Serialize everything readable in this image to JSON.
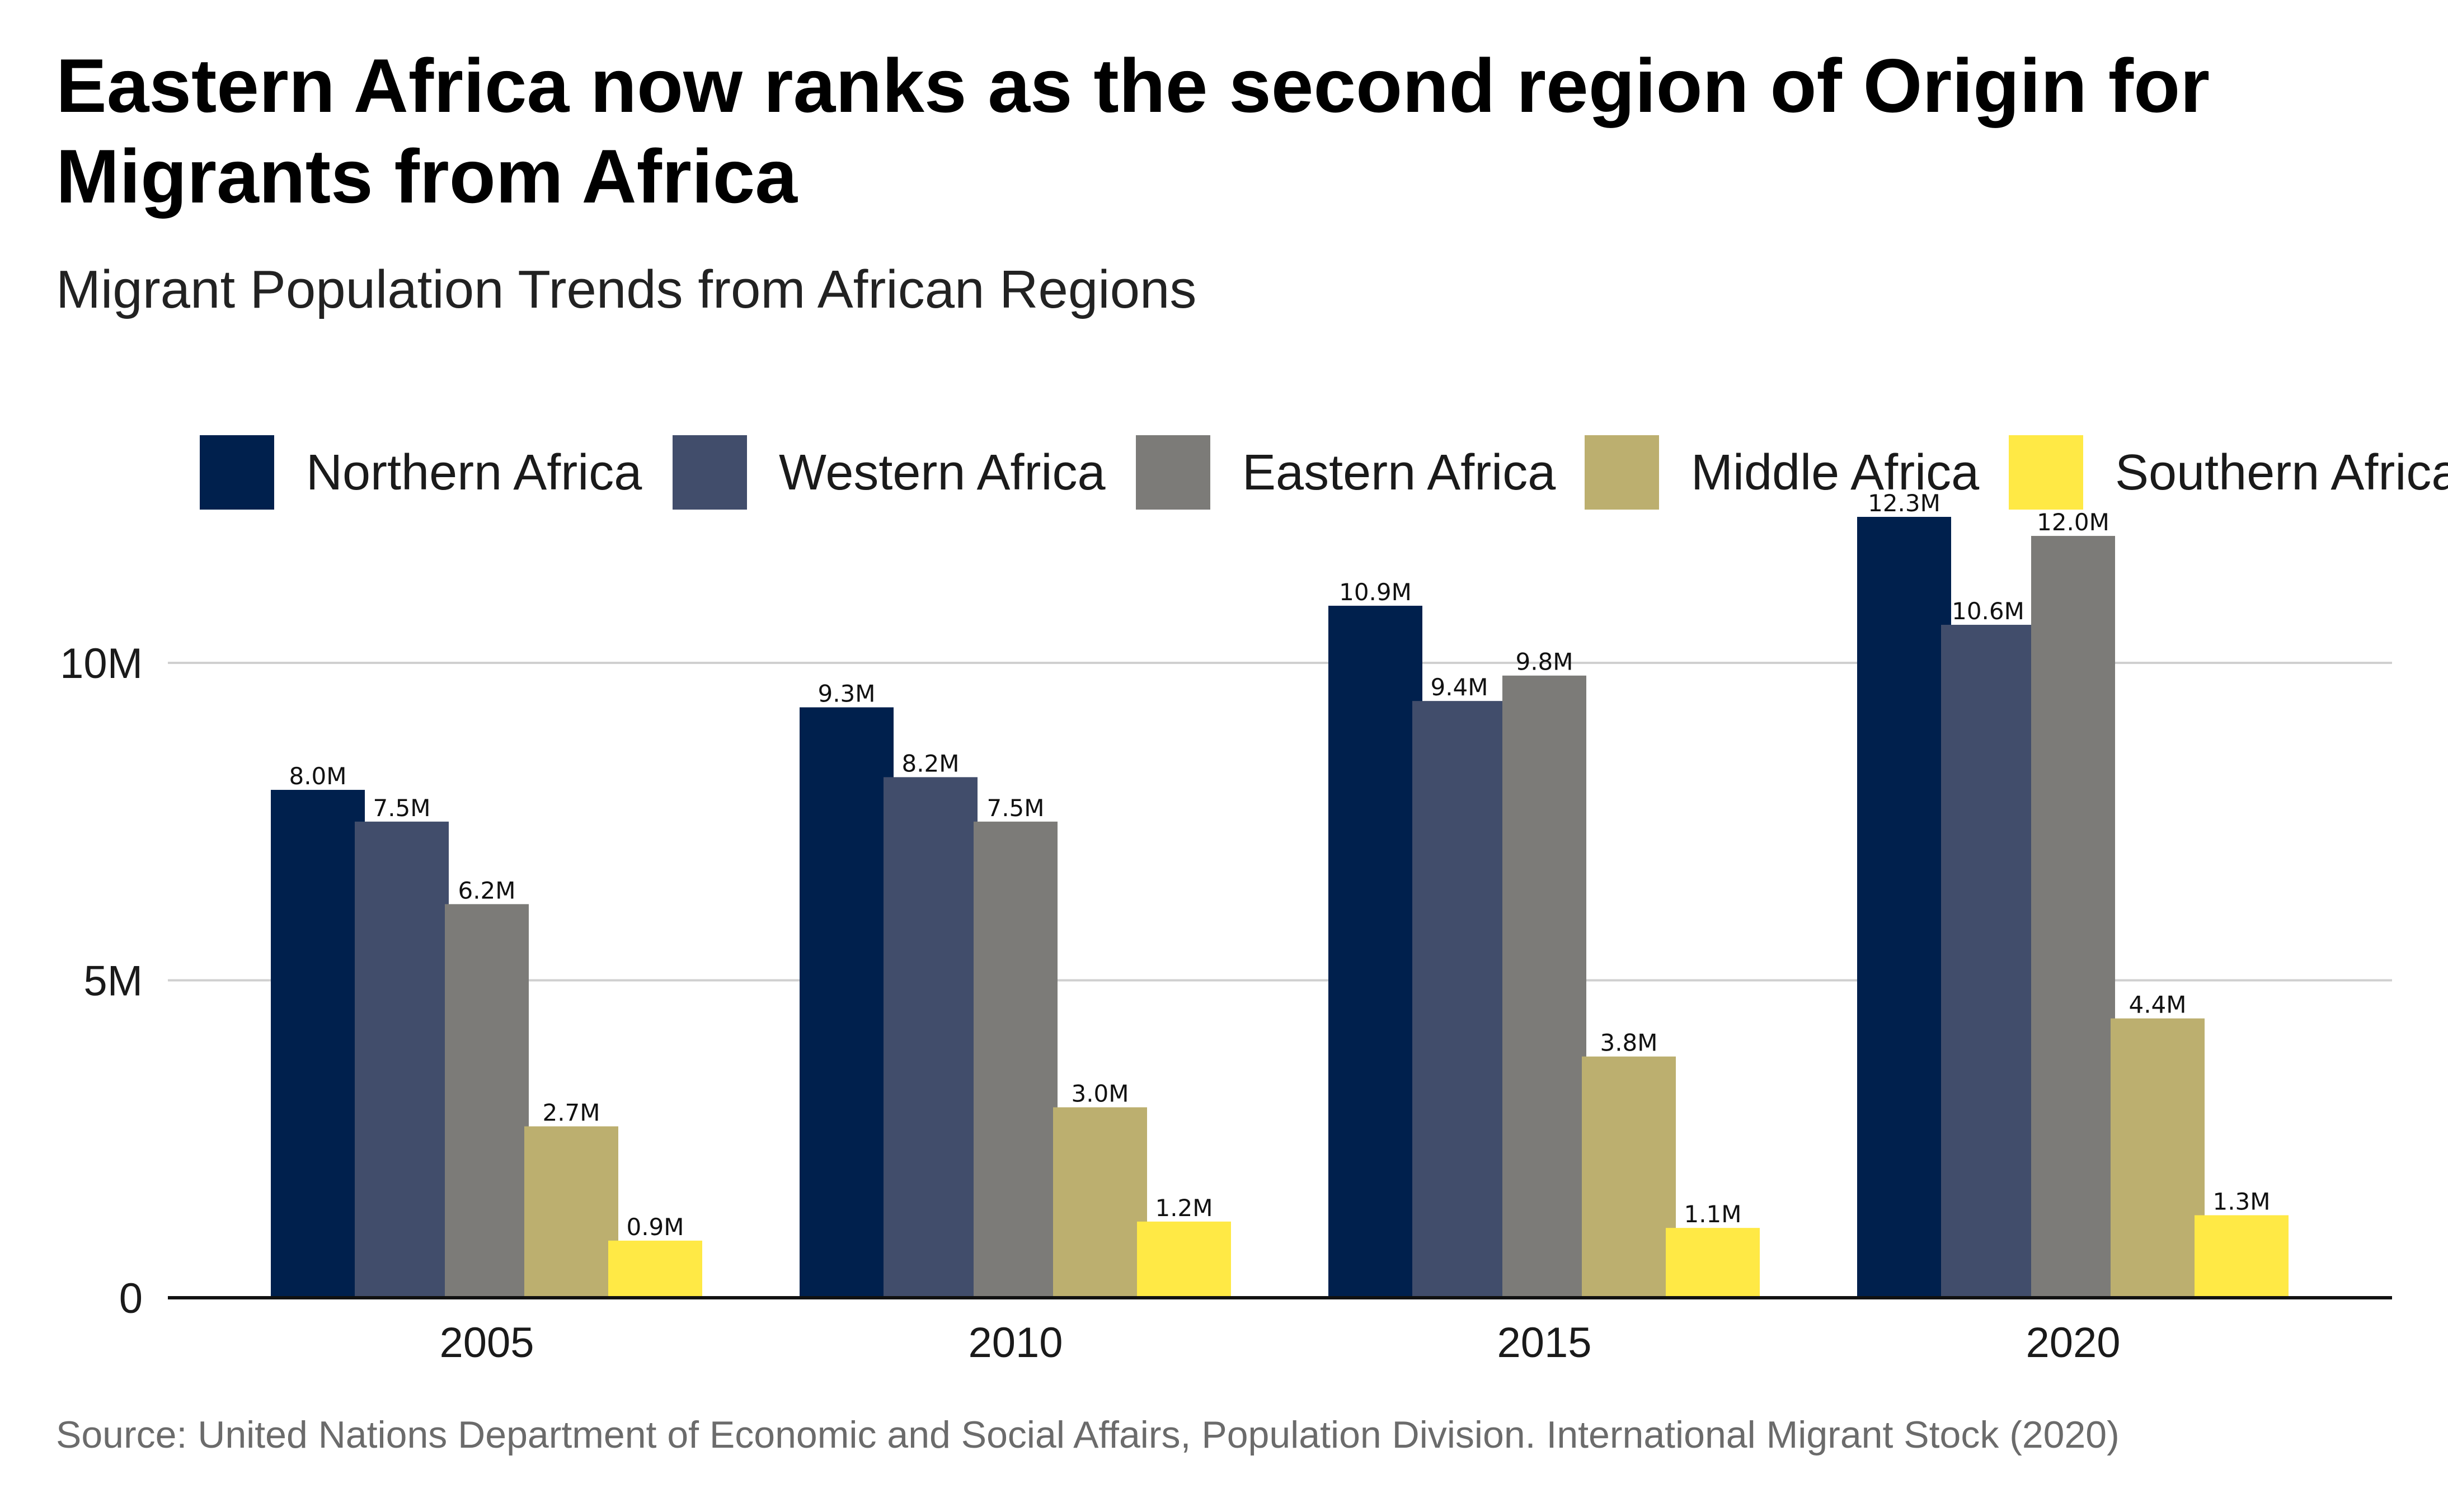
{
  "title": "Eastern Africa now ranks as the second region of Origin for Migrants from Africa",
  "subtitle": "Migrant Population Trends from African Regions",
  "source": "Source: United Nations Department of Economic and Social Affairs, Population Division. International Migrant Stock (2020)",
  "chart_data": {
    "type": "bar",
    "title": "Eastern Africa now ranks as the second region of Origin for Migrants from Africa",
    "subtitle": "Migrant Population Trends from African Regions",
    "xlabel": "",
    "ylabel": "",
    "categories": [
      "2005",
      "2010",
      "2015",
      "2020"
    ],
    "ylim": [
      0,
      12800000
    ],
    "yticks": [
      0,
      5000000,
      10000000
    ],
    "ytick_labels": [
      "0",
      "5M",
      "10M"
    ],
    "grid": "horizontal",
    "legend_position": "top",
    "series": [
      {
        "name": "Northern Africa",
        "color": "#00204d",
        "values": [
          8000000,
          9300000,
          10900000,
          12300000
        ],
        "labels": [
          "8.0M",
          "9.3M",
          "10.9M",
          "12.3M"
        ]
      },
      {
        "name": "Western Africa",
        "color": "#414d6b",
        "values": [
          7500000,
          8200000,
          9400000,
          10600000
        ],
        "labels": [
          "7.5M",
          "8.2M",
          "9.4M",
          "10.6M"
        ]
      },
      {
        "name": "Eastern Africa",
        "color": "#7c7b78",
        "values": [
          6200000,
          7500000,
          9800000,
          12000000
        ],
        "labels": [
          "6.2M",
          "7.5M",
          "9.8M",
          "12.0M"
        ]
      },
      {
        "name": "Middle Africa",
        "color": "#bcaf6f",
        "values": [
          2700000,
          3000000,
          3800000,
          4400000
        ],
        "labels": [
          "2.7M",
          "3.0M",
          "3.8M",
          "4.4M"
        ]
      },
      {
        "name": "Southern Africa",
        "color": "#ffe945",
        "values": [
          900000,
          1200000,
          1100000,
          1300000
        ],
        "labels": [
          "0.9M",
          "1.2M",
          "1.1M",
          "1.3M"
        ]
      }
    ]
  }
}
